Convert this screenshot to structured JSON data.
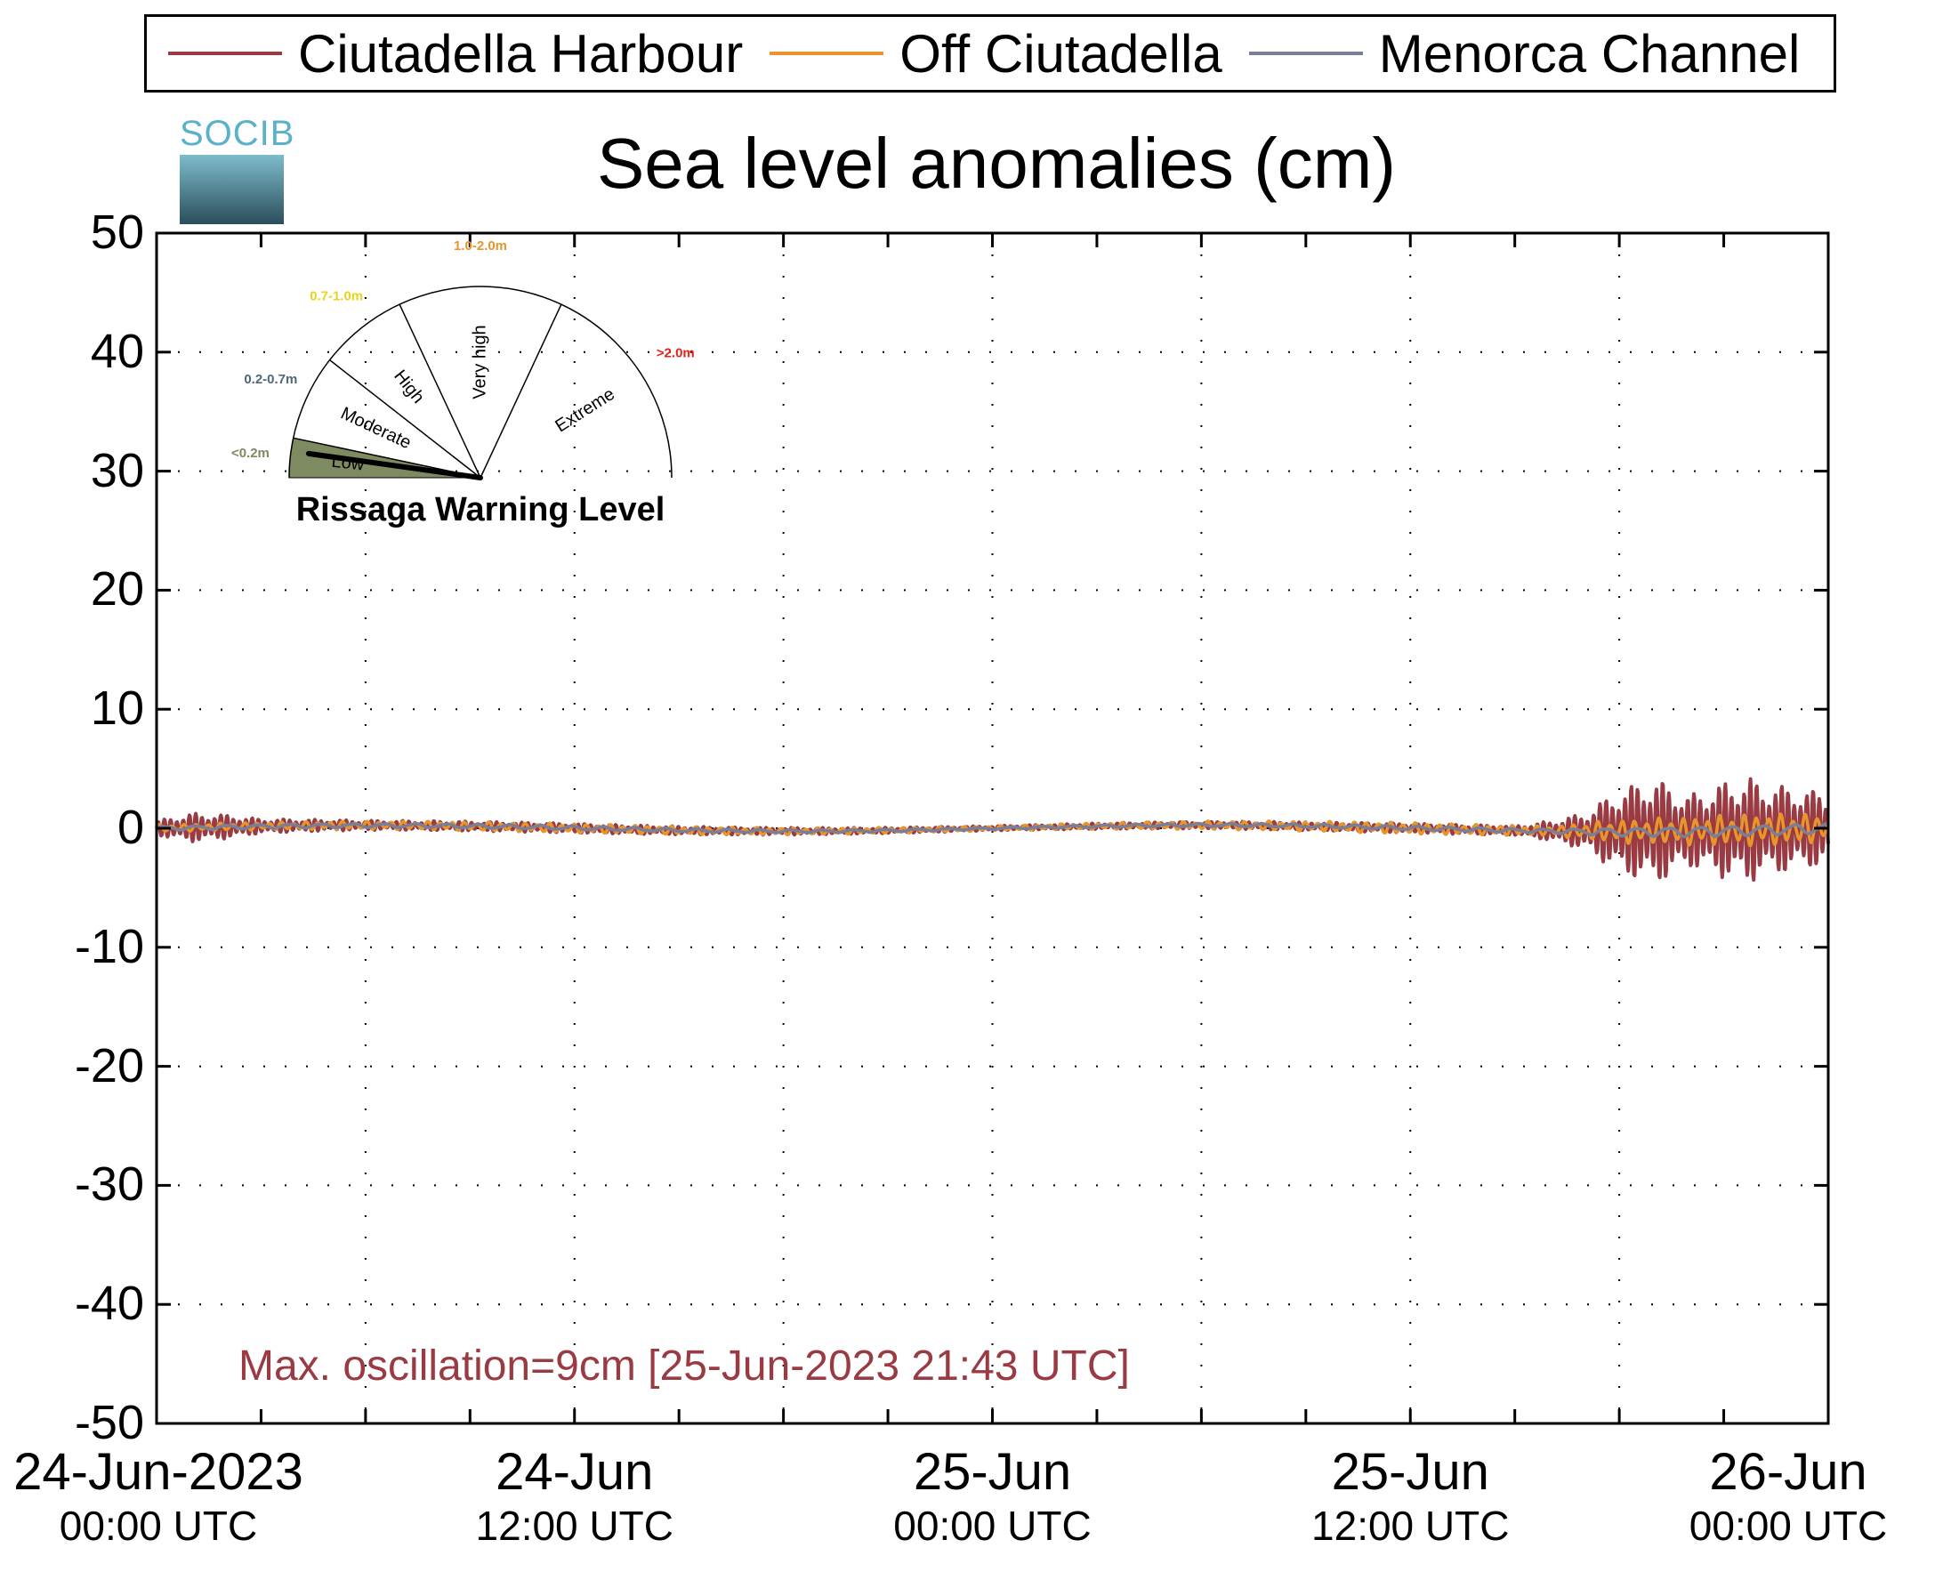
{
  "legend": [
    {
      "name": "Ciutadella Harbour",
      "color": "#9a3b43"
    },
    {
      "name": "Off Ciutadella",
      "color": "#e8952c"
    },
    {
      "name": "Menorca Channel",
      "color": "#7a7f99"
    }
  ],
  "logo": {
    "text": "SOCIB"
  },
  "chart_data": {
    "type": "line",
    "title": "Sea level anomalies (cm)",
    "xlabel": "",
    "ylabel": "",
    "ylim": [
      -50,
      50
    ],
    "yticks": [
      50,
      40,
      30,
      20,
      10,
      0,
      -10,
      -20,
      -30,
      -40,
      -50
    ],
    "xlim": [
      "2023-06-24 00:00",
      "2023-06-26 00:00"
    ],
    "xticks": [
      {
        "label": "24-Jun-2023",
        "sub": "00:00 UTC"
      },
      {
        "label": "24-Jun",
        "sub": "12:00 UTC"
      },
      {
        "label": "25-Jun",
        "sub": "00:00 UTC"
      },
      {
        "label": "25-Jun",
        "sub": "12:00 UTC"
      },
      {
        "label": "26-Jun",
        "sub": "00:00 UTC"
      }
    ],
    "grid": true,
    "legend_position": "top",
    "series": [
      {
        "name": "Ciutadella Harbour",
        "color": "#9a3b43",
        "x": [
          "24-Jun 00:00",
          "24-Jun 01:00",
          "24-Jun 02:00",
          "24-Jun 03:00",
          "24-Jun 06:00",
          "24-Jun 12:00",
          "24-Jun 18:00",
          "25-Jun 00:00",
          "25-Jun 06:00",
          "25-Jun 12:00",
          "25-Jun 15:00",
          "25-Jun 16:00",
          "25-Jun 17:00",
          "25-Jun 18:00",
          "25-Jun 19:00",
          "25-Jun 20:00",
          "25-Jun 21:00",
          "25-Jun 21:43",
          "25-Jun 22:00",
          "25-Jun 23:00",
          "26-Jun 00:00"
        ],
        "envelope": [
          0.6,
          1.2,
          1.0,
          0.6,
          0.4,
          0.4,
          0.3,
          0.2,
          0.3,
          0.4,
          0.4,
          0.8,
          1.5,
          3.5,
          4.5,
          3.0,
          4.0,
          4.5,
          4.0,
          3.5,
          3.0
        ]
      },
      {
        "name": "Off Ciutadella",
        "color": "#e8952c",
        "x": [
          "24-Jun 00:00",
          "24-Jun 12:00",
          "25-Jun 00:00",
          "25-Jun 12:00",
          "25-Jun 16:00",
          "25-Jun 18:00",
          "25-Jun 20:00",
          "25-Jun 22:00",
          "26-Jun 00:00"
        ],
        "envelope": [
          0.3,
          0.4,
          0.2,
          0.5,
          0.4,
          1.0,
          1.2,
          1.4,
          1.2
        ]
      },
      {
        "name": "Menorca Channel",
        "color": "#7a7f99",
        "x": [
          "24-Jun 00:00",
          "24-Jun 12:00",
          "25-Jun 00:00",
          "25-Jun 12:00",
          "25-Jun 16:00",
          "25-Jun 18:00",
          "25-Jun 20:00",
          "25-Jun 22:00",
          "26-Jun 00:00"
        ],
        "envelope": [
          0.2,
          0.2,
          0.1,
          0.2,
          0.2,
          0.4,
          0.5,
          0.5,
          0.5
        ]
      }
    ],
    "annotation": "Max. oscillation=9cm [25-Jun-2023 21:43 UTC]"
  },
  "gauge": {
    "title": "Rissaga Warning Level",
    "sectors": [
      {
        "label": "Low",
        "range": "<0.2m",
        "range_color": "#7e8a5f"
      },
      {
        "label": "Moderate",
        "range": "0.2-0.7m",
        "range_color": "#4d6a78"
      },
      {
        "label": "High",
        "range": "0.7-1.0m",
        "range_color": "#e8d21a"
      },
      {
        "label": "Very high",
        "range": "1.0-2.0m",
        "range_color": "#e8952c"
      },
      {
        "label": "Extreme",
        "range": ">2.0m",
        "range_color": "#e3231b"
      }
    ],
    "active_level": "Low",
    "active_fill": "#7e8a5f"
  }
}
